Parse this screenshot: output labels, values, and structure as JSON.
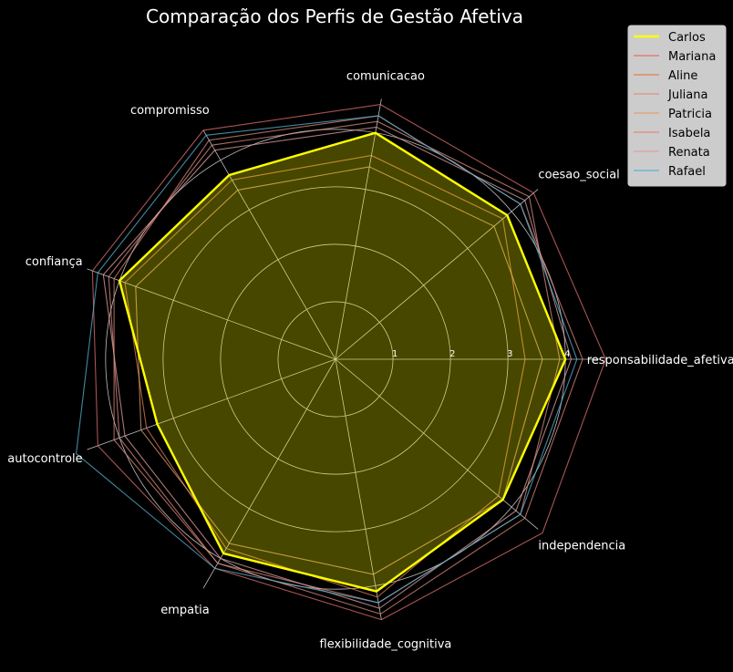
{
  "chart_data": {
    "type": "radar",
    "title": "Comparação dos Perfis de Gestão Afetiva",
    "axes": [
      "responsabilidade_afetiva",
      "coesao_social",
      "comunicacao",
      "compromisso",
      "confiança",
      "autocontrole",
      "empatia",
      "flexibilidade_cognitiva",
      "independencia"
    ],
    "axis_order_in_image": [
      "responsabilidade_afetiva",
      "independencia",
      "coesao_social",
      "comunicacao",
      "compromisso",
      "confiança",
      "autocontrole",
      "empatia",
      "flexibilidade_cognitiva"
    ],
    "rlim": [
      0,
      4.6
    ],
    "ticks": [
      1,
      2,
      3,
      4
    ],
    "tick_labels": [
      "1",
      "2",
      "3",
      "4"
    ],
    "grid": true,
    "legend_position": "top-right",
    "series": [
      {
        "name": "Carlos",
        "color": "#ffff00",
        "highlight": true,
        "values": [
          4.0,
          3.9,
          4.0,
          3.7,
          4.0,
          3.3,
          3.9,
          4.1,
          3.8
        ]
      },
      {
        "name": "Mariana",
        "color": "#e07070",
        "values": [
          4.7,
          4.5,
          4.5,
          4.6,
          4.5,
          4.4,
          4.2,
          4.6,
          4.7
        ]
      },
      {
        "name": "Aline",
        "color": "#e08050",
        "values": [
          3.3,
          3.8,
          3.6,
          3.6,
          3.9,
          3.5,
          3.8,
          4.2,
          3.7
        ]
      },
      {
        "name": "Juliana",
        "color": "#e09080",
        "values": [
          3.9,
          4.4,
          4.2,
          4.3,
          4.2,
          4.0,
          4.1,
          4.3,
          4.2
        ]
      },
      {
        "name": "Patricia",
        "color": "#e0a070",
        "values": [
          3.6,
          3.6,
          3.4,
          3.4,
          3.7,
          3.6,
          3.7,
          3.8,
          3.8
        ]
      },
      {
        "name": "Isabela",
        "color": "#e08a7a",
        "values": [
          4.3,
          4.2,
          4.3,
          4.4,
          4.1,
          4.1,
          4.1,
          4.5,
          4.3
        ]
      },
      {
        "name": "Renata",
        "color": "#e2a0a0",
        "values": [
          4.1,
          4.3,
          4.1,
          4.2,
          4.3,
          3.9,
          4.0,
          4.4,
          4.1
        ]
      },
      {
        "name": "Rafael",
        "color": "#5ab4d4",
        "values": [
          4.2,
          4.2,
          4.3,
          4.5,
          4.4,
          4.8,
          4.2,
          4.3,
          4.2
        ]
      }
    ]
  }
}
